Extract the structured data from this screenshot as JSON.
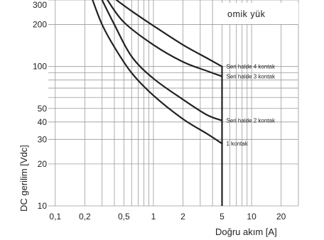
{
  "chart_data": {
    "type": "line",
    "x_scale": "log",
    "y_scale": "log",
    "xlabel": "Doğru akım [A]",
    "ylabel": "DC gerilim [Vdc]",
    "xlim": [
      0.085,
      30
    ],
    "ylim": [
      10,
      300
    ],
    "x_ticks": [
      0.1,
      0.2,
      0.5,
      1,
      2,
      5,
      10,
      20
    ],
    "x_tick_labels": [
      "0,1",
      "0,2",
      "0,5",
      "1",
      "2",
      "5",
      "10",
      "20"
    ],
    "y_ticks": [
      10,
      20,
      30,
      40,
      50,
      100,
      200,
      300
    ],
    "y_tick_labels": [
      "10",
      "20",
      "30",
      "40",
      "50",
      "100",
      "200",
      "300"
    ],
    "grid": true,
    "annotation": "omik yük",
    "vertical_limit_x": 5,
    "series": [
      {
        "name": "Seri halde 4 kontak",
        "x": [
          0.42,
          0.6,
          1,
          2,
          3.5,
          5
        ],
        "y": [
          300,
          250,
          196,
          143,
          115,
          100
        ]
      },
      {
        "name": "Seri halde 3 kontak",
        "x": [
          0.34,
          0.5,
          1,
          2,
          3.5,
          5
        ],
        "y": [
          300,
          208,
          143,
          108,
          93,
          85
        ]
      },
      {
        "name": "Seri halde 2 kontak",
        "x": [
          0.3,
          0.4,
          0.6,
          1,
          2,
          3.5,
          5
        ],
        "y": [
          300,
          200,
          118,
          82,
          58,
          45,
          41
        ]
      },
      {
        "name": "1 kontak",
        "x": [
          0.24,
          0.3,
          0.4,
          0.6,
          1,
          2,
          3.5,
          5
        ],
        "y": [
          300,
          200,
          138,
          90,
          62,
          42,
          33,
          28
        ]
      }
    ]
  }
}
